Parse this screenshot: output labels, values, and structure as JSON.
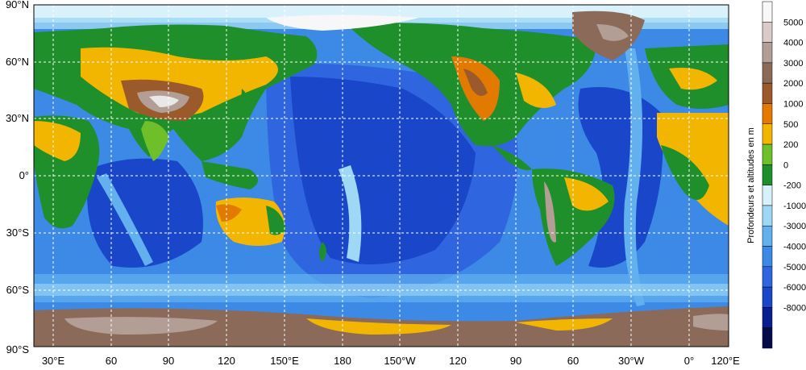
{
  "map": {
    "lat_labels": [
      "90°N",
      "60°N",
      "30°N",
      "0°",
      "30°S",
      "60°S",
      "90°S"
    ],
    "lon_labels": [
      "30°E",
      "60",
      "90",
      "120",
      "150°E",
      "180",
      "150°W",
      "120",
      "90",
      "60",
      "30°W",
      "0°",
      "120°E"
    ],
    "colors": {
      "deep_ocean": "#0a1f8f",
      "ocean_6000": "#1a47c9",
      "ocean_5000": "#2f66e0",
      "ocean_4000": "#3d8ae6",
      "ocean_3000": "#63b0ee",
      "ocean_1000": "#9fd8f5",
      "shelf": "#d8f1fb",
      "lowland": "#1e8f2a",
      "land_200": "#6fbf2a",
      "land_500": "#f2b600",
      "land_1000": "#e37a00",
      "land_2000": "#9a5a2a",
      "land_3000": "#8a6a58",
      "land_4000": "#b8a39a",
      "land_5000": "#ddd1cc",
      "ice": "#f7f7f7"
    }
  },
  "legend": {
    "title": "Profondeurs et altitudes en m",
    "ticks": [
      "5000",
      "4000",
      "3000",
      "2000",
      "1000",
      "500",
      "200",
      "0",
      "-200",
      "-1000",
      "-3000",
      "-4000",
      "-5000",
      "-6000",
      "-8000"
    ],
    "colors": [
      "#f8f8f8",
      "#d9ccc8",
      "#b39e96",
      "#8b6a59",
      "#9b5a2b",
      "#e47a00",
      "#f2b600",
      "#6fbf2a",
      "#1e8f2a",
      "#d8f1fb",
      "#9fd8f5",
      "#63b0ee",
      "#3d8ae6",
      "#2f66e0",
      "#1a47c9",
      "#0a1f8f",
      "#050a4a"
    ]
  }
}
